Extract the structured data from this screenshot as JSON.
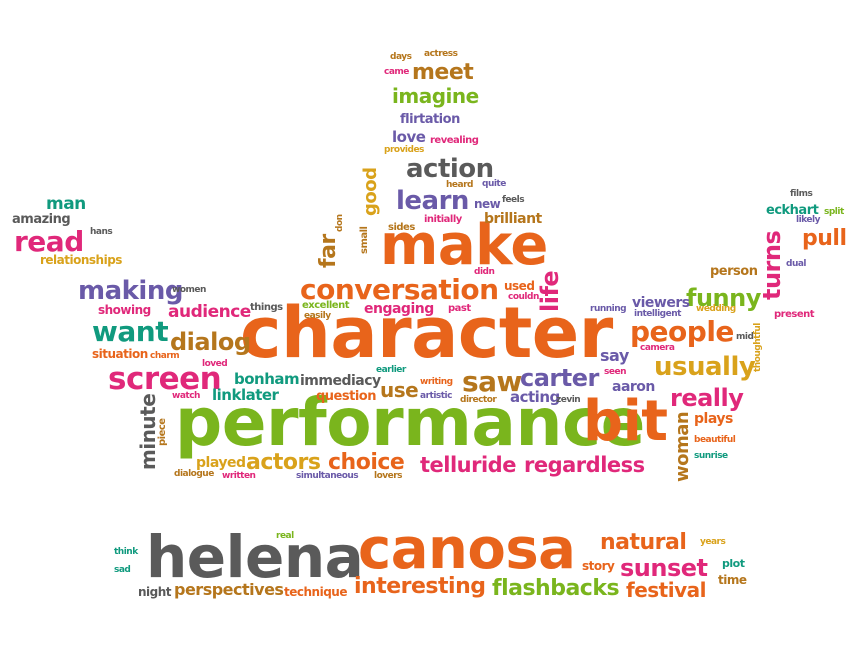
{
  "palette": {
    "orange": "#e8641b",
    "green": "#7ab51d",
    "pink": "#e0287a",
    "purple": "#6a5aa8",
    "teal": "#109a7e",
    "gold": "#d9a21b",
    "grey": "#5a5a5a",
    "brown": "#b5761c",
    "red": "#d33a2c"
  },
  "words": [
    {
      "text": "character",
      "color": "#e8641b"
    },
    {
      "text": "performance",
      "color": "#7ab51d"
    },
    {
      "text": "make",
      "color": "#e8641b"
    },
    {
      "text": "helena",
      "color": "#5a5a5a"
    },
    {
      "text": "canosa",
      "color": "#e8641b"
    },
    {
      "text": "bit",
      "color": "#e8641b"
    },
    {
      "text": "conversation",
      "color": "#e8641b"
    },
    {
      "text": "screen",
      "color": "#e0287a"
    },
    {
      "text": "people",
      "color": "#e8641b"
    },
    {
      "text": "want",
      "color": "#109a7e"
    },
    {
      "text": "telluride",
      "color": "#e0287a"
    },
    {
      "text": "regardless",
      "color": "#e0287a"
    },
    {
      "text": "usually",
      "color": "#d9a21b"
    },
    {
      "text": "saw",
      "color": "#b5761c"
    },
    {
      "text": "carter",
      "color": "#6a5aa8"
    },
    {
      "text": "making",
      "color": "#6a5aa8"
    },
    {
      "text": "action",
      "color": "#5a5a5a"
    },
    {
      "text": "learn",
      "color": "#6a5aa8"
    },
    {
      "text": "read",
      "color": "#e0287a"
    },
    {
      "text": "dialog",
      "color": "#b5761c"
    },
    {
      "text": "actors",
      "color": "#d9a21b"
    },
    {
      "text": "choice",
      "color": "#e8641b"
    },
    {
      "text": "funny",
      "color": "#7ab51d"
    },
    {
      "text": "really",
      "color": "#e0287a"
    },
    {
      "text": "pull",
      "color": "#e8641b"
    },
    {
      "text": "meet",
      "color": "#b5761c"
    },
    {
      "text": "imagine",
      "color": "#7ab51d"
    },
    {
      "text": "natural",
      "color": "#e8641b"
    },
    {
      "text": "sunset",
      "color": "#e0287a"
    },
    {
      "text": "interesting",
      "color": "#e8641b"
    },
    {
      "text": "flashbacks",
      "color": "#7ab51d"
    },
    {
      "text": "festival",
      "color": "#e8641b"
    },
    {
      "text": "perspectives",
      "color": "#b5761c"
    },
    {
      "text": "audience",
      "color": "#e0287a"
    },
    {
      "text": "bonham",
      "color": "#109a7e"
    },
    {
      "text": "linklater",
      "color": "#109a7e"
    },
    {
      "text": "use",
      "color": "#b5761c"
    },
    {
      "text": "immediacy",
      "color": "#5a5a5a"
    },
    {
      "text": "engaging",
      "color": "#e0287a"
    },
    {
      "text": "man",
      "color": "#109a7e"
    },
    {
      "text": "amazing",
      "color": "#5a5a5a"
    },
    {
      "text": "relationships",
      "color": "#d9a21b"
    },
    {
      "text": "brilliant",
      "color": "#b5761c"
    },
    {
      "text": "love",
      "color": "#6a5aa8"
    },
    {
      "text": "flirtation",
      "color": "#6a5aa8"
    },
    {
      "text": "eckhart",
      "color": "#109a7e"
    },
    {
      "text": "viewers",
      "color": "#6a5aa8"
    },
    {
      "text": "person",
      "color": "#b5761c"
    },
    {
      "text": "aaron",
      "color": "#6a5aa8"
    },
    {
      "text": "say",
      "color": "#6a5aa8"
    },
    {
      "text": "plays",
      "color": "#e8641b"
    },
    {
      "text": "acting",
      "color": "#6a5aa8"
    },
    {
      "text": "question",
      "color": "#e8641b"
    },
    {
      "text": "played",
      "color": "#d9a21b"
    },
    {
      "text": "situation",
      "color": "#e8641b"
    },
    {
      "text": "showing",
      "color": "#e0287a"
    },
    {
      "text": "excellent",
      "color": "#7ab51d"
    },
    {
      "text": "used",
      "color": "#e8641b"
    },
    {
      "text": "new",
      "color": "#6a5aa8"
    },
    {
      "text": "story",
      "color": "#e8641b"
    },
    {
      "text": "plot",
      "color": "#109a7e"
    },
    {
      "text": "time",
      "color": "#b5761c"
    },
    {
      "text": "technique",
      "color": "#e8641b"
    },
    {
      "text": "night",
      "color": "#5a5a5a"
    },
    {
      "text": "days",
      "color": "#b5761c"
    },
    {
      "text": "actress",
      "color": "#b5761c"
    },
    {
      "text": "came",
      "color": "#e0287a"
    },
    {
      "text": "revealing",
      "color": "#e0287a"
    },
    {
      "text": "provides",
      "color": "#d9a21b"
    },
    {
      "text": "heard",
      "color": "#b5761c"
    },
    {
      "text": "quite",
      "color": "#6a5aa8"
    },
    {
      "text": "feels",
      "color": "#5a5a5a"
    },
    {
      "text": "initially",
      "color": "#e0287a"
    },
    {
      "text": "sides",
      "color": "#b5761c"
    },
    {
      "text": "hans",
      "color": "#5a5a5a"
    },
    {
      "text": "women",
      "color": "#5a5a5a"
    },
    {
      "text": "things",
      "color": "#5a5a5a"
    },
    {
      "text": "easily",
      "color": "#b5761c"
    },
    {
      "text": "past",
      "color": "#e0287a"
    },
    {
      "text": "couldn",
      "color": "#e0287a"
    },
    {
      "text": "didn",
      "color": "#e0287a"
    },
    {
      "text": "running",
      "color": "#6a5aa8"
    },
    {
      "text": "intelligent",
      "color": "#6a5aa8"
    },
    {
      "text": "wedding",
      "color": "#d9a21b"
    },
    {
      "text": "camera",
      "color": "#e0287a"
    },
    {
      "text": "mid",
      "color": "#5a5a5a"
    },
    {
      "text": "present",
      "color": "#e0287a"
    },
    {
      "text": "seen",
      "color": "#e0287a"
    },
    {
      "text": "films",
      "color": "#5a5a5a"
    },
    {
      "text": "split",
      "color": "#7ab51d"
    },
    {
      "text": "likely",
      "color": "#6a5aa8"
    },
    {
      "text": "dual",
      "color": "#6a5aa8"
    },
    {
      "text": "charm",
      "color": "#e8641b"
    },
    {
      "text": "loved",
      "color": "#e0287a"
    },
    {
      "text": "earlier",
      "color": "#109a7e"
    },
    {
      "text": "writing",
      "color": "#e8641b"
    },
    {
      "text": "artistic",
      "color": "#6a5aa8"
    },
    {
      "text": "director",
      "color": "#b5761c"
    },
    {
      "text": "zevin",
      "color": "#5a5a5a"
    },
    {
      "text": "watch",
      "color": "#e0287a"
    },
    {
      "text": "dialogue",
      "color": "#b5761c"
    },
    {
      "text": "written",
      "color": "#e0287a"
    },
    {
      "text": "simultaneous",
      "color": "#6a5aa8"
    },
    {
      "text": "lovers",
      "color": "#b5761c"
    },
    {
      "text": "beautiful",
      "color": "#e8641b"
    },
    {
      "text": "sunrise",
      "color": "#109a7e"
    },
    {
      "text": "real",
      "color": "#7ab51d"
    },
    {
      "text": "think",
      "color": "#109a7e"
    },
    {
      "text": "sad",
      "color": "#109a7e"
    },
    {
      "text": "years",
      "color": "#d9a21b"
    },
    {
      "text": "life",
      "color": "#e0287a"
    },
    {
      "text": "turns",
      "color": "#e0287a"
    },
    {
      "text": "good",
      "color": "#d9a21b"
    },
    {
      "text": "far",
      "color": "#b5761c"
    },
    {
      "text": "small",
      "color": "#b5761c"
    },
    {
      "text": "don",
      "color": "#b5761c"
    },
    {
      "text": "minute",
      "color": "#5a5a5a"
    },
    {
      "text": "piece",
      "color": "#b5761c"
    },
    {
      "text": "woman",
      "color": "#b5761c"
    },
    {
      "text": "thoughtful",
      "color": "#d9a21b"
    }
  ]
}
